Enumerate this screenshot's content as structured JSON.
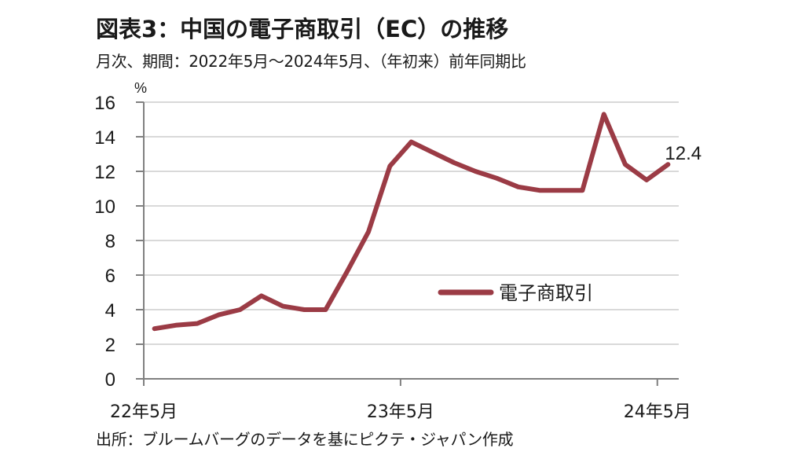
{
  "title": "図表3：中国の電子商取引（EC）の推移",
  "subtitle": "月次、期間：2022年5月～2024年5月、（年初来）前年同期比",
  "source": "出所：ブルームバーグのデータを基にピクテ・ジャパン作成",
  "chart_data": {
    "type": "line",
    "title": "図表3：中国の電子商取引（EC）の推移",
    "ylabel": "%",
    "xlabel": "",
    "ylim": [
      0,
      16
    ],
    "yticks": [
      0,
      2,
      4,
      6,
      8,
      10,
      12,
      14,
      16
    ],
    "ytick_labels": [
      "0",
      "2",
      "4",
      "6",
      "8",
      "10",
      "12",
      "14",
      "16"
    ],
    "xtick_labels": [
      {
        "index": 0,
        "label": "22年5月"
      },
      {
        "index": 12,
        "label": "23年5月"
      },
      {
        "index": 24,
        "label": "24年5月"
      }
    ],
    "categories": [
      "2022-05",
      "2022-06",
      "2022-07",
      "2022-08",
      "2022-09",
      "2022-10",
      "2022-11",
      "2022-12",
      "2023-01",
      "2023-02",
      "2023-03",
      "2023-04",
      "2023-05",
      "2023-06",
      "2023-07",
      "2023-08",
      "2023-09",
      "2023-10",
      "2023-11",
      "2023-12",
      "2024-01",
      "2024-02",
      "2024-03",
      "2024-04",
      "2024-05"
    ],
    "grid": true,
    "legend": "center-right",
    "series": [
      {
        "name": "電子商取引",
        "color": "#9b3b45",
        "values": [
          2.9,
          3.1,
          3.2,
          3.7,
          4.0,
          4.8,
          4.2,
          4.0,
          4.0,
          6.2,
          8.5,
          12.3,
          13.7,
          13.1,
          12.5,
          12.0,
          11.6,
          11.1,
          10.9,
          10.9,
          10.9,
          15.3,
          12.4,
          11.5,
          12.4
        ]
      }
    ],
    "annotations": [
      {
        "text": "12.4",
        "index": 24
      }
    ]
  }
}
